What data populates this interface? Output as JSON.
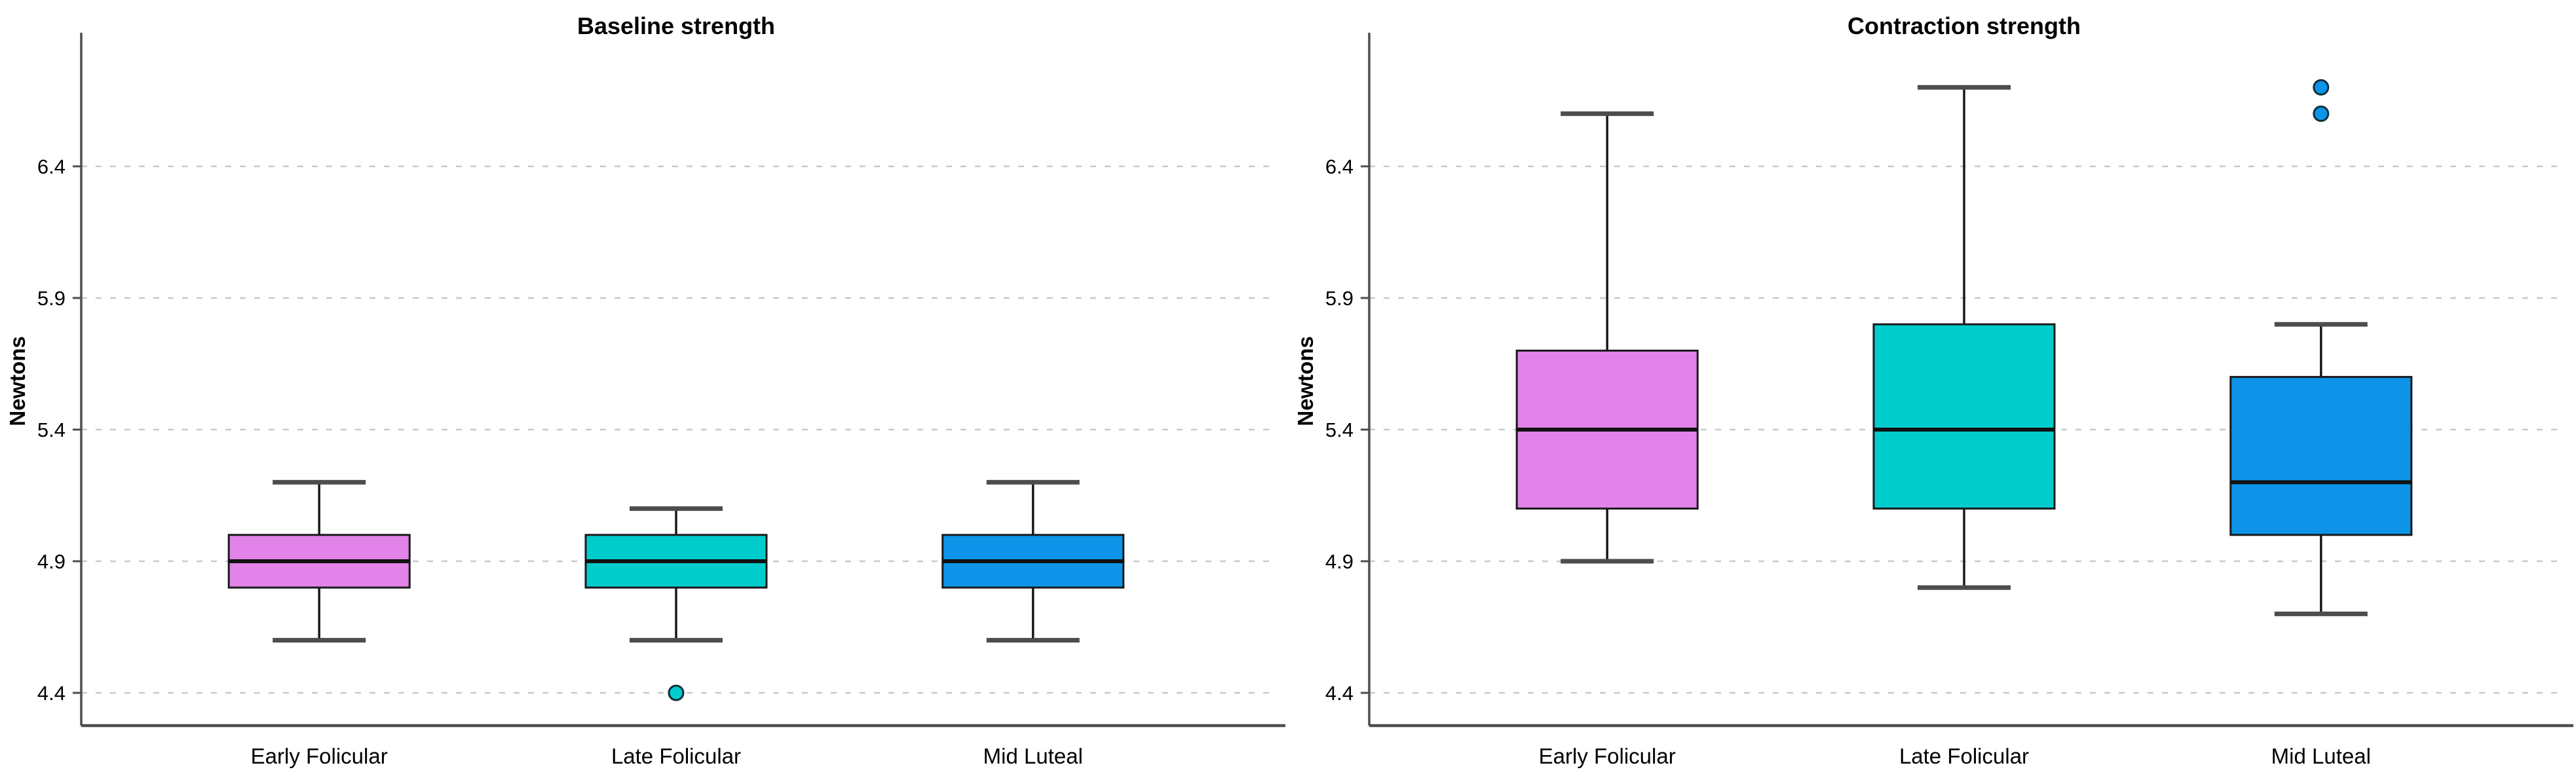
{
  "page": {
    "background": "#ffffff",
    "description": "Two side-by-side box plots comparing muscle strength (Newtons) across menstrual cycle phases"
  },
  "style": {
    "grid_color": "#c9c9c9",
    "axis_color": "#4d4d4d",
    "box_stroke": "#1a1a1a",
    "whisker_color": "#1a1a1a",
    "cap_color": "#4d4d4d",
    "median_color": "#111111",
    "text_color": "#000000",
    "series_colors": [
      "#e183e8",
      "#00cccc",
      "#0d94e8"
    ]
  },
  "chart_data": [
    {
      "type": "box",
      "title": "Baseline strength",
      "ylabel": "Newtons",
      "xlabel": "",
      "categories": [
        "Early Folicular",
        "Late Folicular",
        "Mid Luteal"
      ],
      "yticks": [
        4.4,
        4.9,
        5.4,
        5.9,
        6.4
      ],
      "ylim": [
        4.27,
        6.95
      ],
      "grid": "horizontal-dashed",
      "legend_position": "none",
      "series": [
        {
          "name": "Early Folicular",
          "color": "#e183e8",
          "whisker_low": 4.6,
          "q1": 4.8,
          "median": 4.9,
          "q3": 5.0,
          "whisker_high": 5.2,
          "outliers": []
        },
        {
          "name": "Late Folicular",
          "color": "#00cccc",
          "whisker_low": 4.6,
          "q1": 4.8,
          "median": 4.9,
          "q3": 5.0,
          "whisker_high": 5.1,
          "outliers": [
            4.4
          ]
        },
        {
          "name": "Mid Luteal",
          "color": "#0d94e8",
          "whisker_low": 4.6,
          "q1": 4.8,
          "median": 4.9,
          "q3": 5.0,
          "whisker_high": 5.2,
          "outliers": []
        }
      ]
    },
    {
      "type": "box",
      "title": "Contraction strength",
      "ylabel": "Newtons",
      "xlabel": "",
      "categories": [
        "Early Folicular",
        "Late Folicular",
        "Mid Luteal"
      ],
      "yticks": [
        4.4,
        4.9,
        5.4,
        5.9,
        6.4
      ],
      "ylim": [
        4.27,
        6.95
      ],
      "grid": "horizontal-dashed",
      "legend_position": "none",
      "series": [
        {
          "name": "Early Folicular",
          "color": "#e183e8",
          "whisker_low": 4.9,
          "q1": 5.1,
          "median": 5.4,
          "q3": 5.7,
          "whisker_high": 6.6,
          "outliers": []
        },
        {
          "name": "Late Folicular",
          "color": "#00cccc",
          "whisker_low": 4.8,
          "q1": 5.1,
          "median": 5.4,
          "q3": 5.8,
          "whisker_high": 6.7,
          "outliers": []
        },
        {
          "name": "Mid Luteal",
          "color": "#0d94e8",
          "whisker_low": 4.7,
          "q1": 5.0,
          "median": 5.2,
          "q3": 5.6,
          "whisker_high": 5.8,
          "outliers": [
            6.6,
            6.7
          ]
        }
      ]
    }
  ]
}
